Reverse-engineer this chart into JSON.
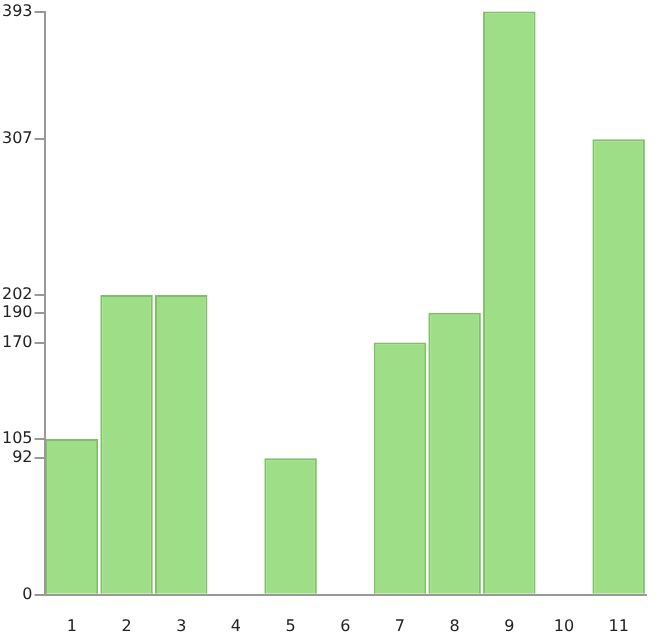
{
  "chart_data": {
    "type": "bar",
    "categories": [
      "1",
      "2",
      "3",
      "4",
      "5",
      "6",
      "7",
      "8",
      "9",
      "10",
      "11"
    ],
    "values": [
      105,
      202,
      202,
      0,
      92,
      0,
      170,
      190,
      393,
      0,
      307
    ],
    "color": "#9ede86",
    "ylim": [
      0,
      393
    ],
    "yticks": [
      0,
      92,
      105,
      170,
      190,
      202,
      307,
      393
    ],
    "grid": false,
    "legend": false
  }
}
